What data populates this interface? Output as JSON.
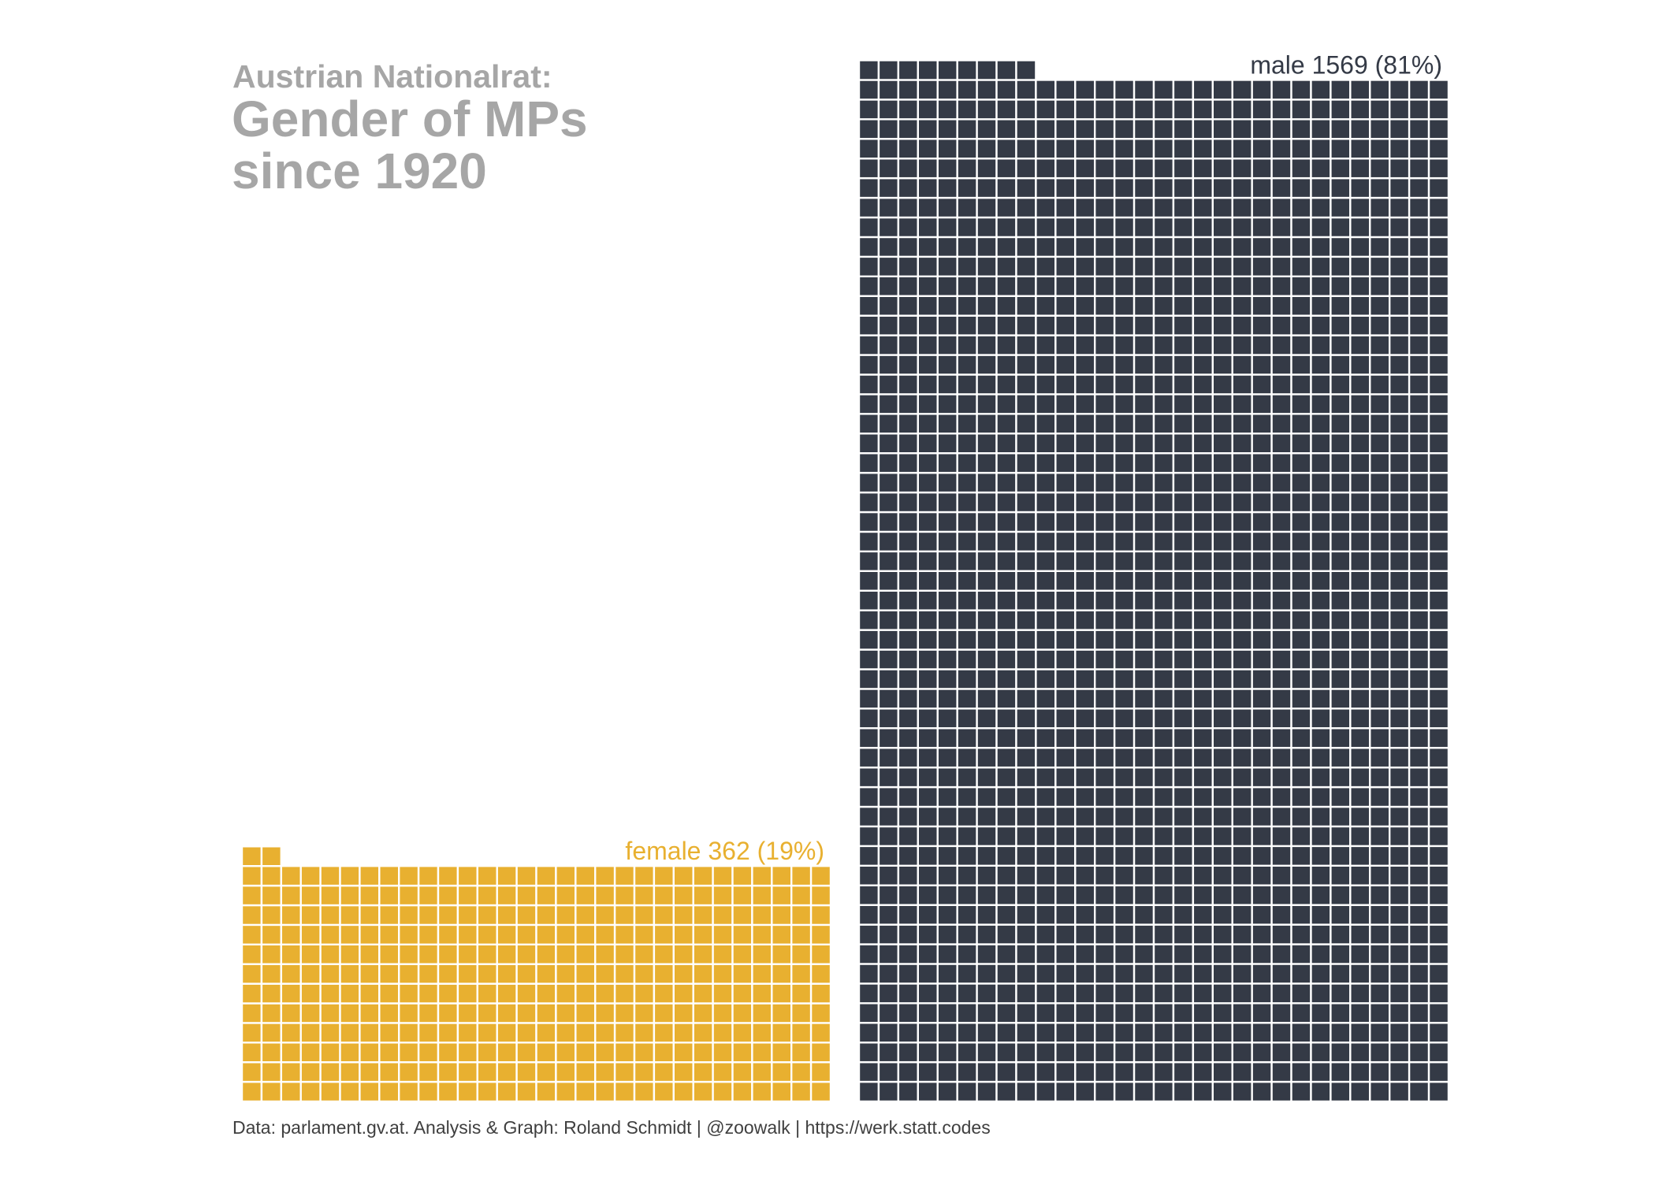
{
  "title": {
    "small": "Austrian Nationalrat:",
    "line1": "Gender of MPs",
    "line2": "since 1920"
  },
  "caption": "Data: parlament.gv.at. Analysis & Graph: Roland Schmidt | @zoowalk | https://werk.statt.codes",
  "chart_data": {
    "type": "waffle",
    "units_per_column": 30,
    "categories": [
      {
        "name": "female",
        "count": 362,
        "percent": 19,
        "label": "female 362 (19%)",
        "color": "#e8b030"
      },
      {
        "name": "male",
        "count": 1569,
        "percent": 81,
        "label": "male 1569 (81%)",
        "color": "#343a46"
      }
    ],
    "tile_border_color": "#ffffff"
  }
}
